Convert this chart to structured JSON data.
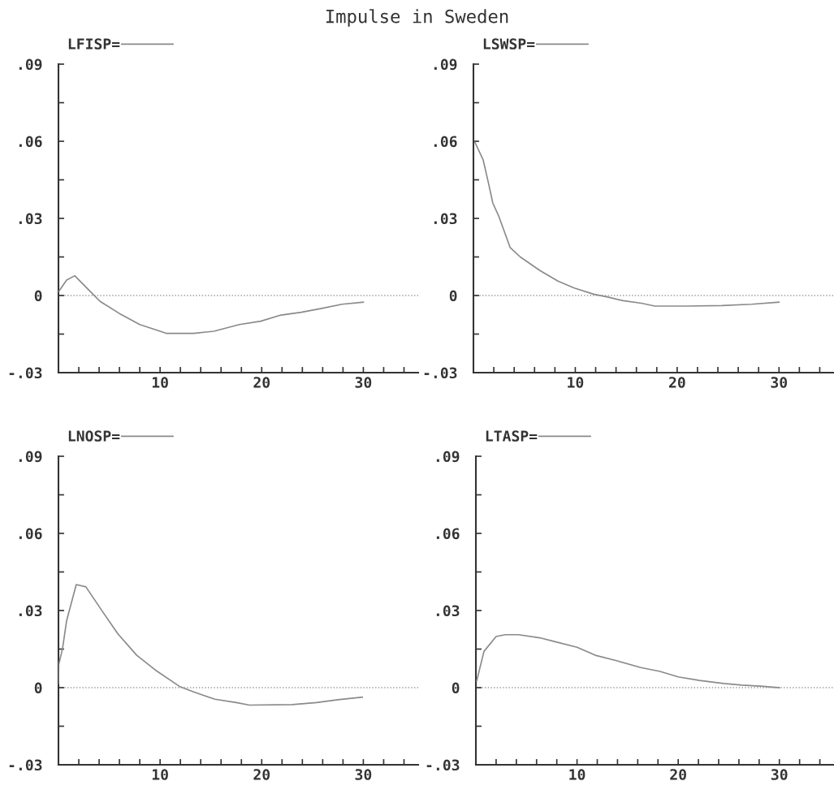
{
  "chart_data": [
    {
      "type": "line",
      "title": "Impulse in Sweden",
      "legend": "top left",
      "xlim": [
        0,
        35.4
      ],
      "ylim": [
        -0.03,
        0.09
      ],
      "xticks": [
        {
          "value": 2,
          "label": null
        },
        {
          "value": 4,
          "label": null
        },
        {
          "value": 6,
          "label": null
        },
        {
          "value": 8,
          "label": null
        },
        10,
        {
          "value": 12,
          "label": null
        },
        {
          "value": 14,
          "label": null
        },
        {
          "value": 16,
          "label": null
        },
        {
          "value": 18,
          "label": null
        },
        20,
        {
          "value": 22,
          "label": null
        },
        {
          "value": 24,
          "label": null
        },
        {
          "value": 26,
          "label": null
        },
        {
          "value": 28,
          "label": null
        },
        30,
        {
          "value": 32,
          "label": null
        },
        {
          "value": 34,
          "label": null
        }
      ],
      "yticks": [
        {
          "value": -0.03,
          "label": "-.03"
        },
        {
          "value": -0.015,
          "label": null
        },
        0,
        {
          "value": 0.015,
          "label": null
        },
        {
          "value": 0.03,
          "label": ".03"
        },
        {
          "value": 0.045,
          "label": null
        },
        {
          "value": 0.06,
          "label": ".06"
        },
        {
          "value": 0.075,
          "label": null
        },
        {
          "value": 0.09,
          "label": ".09"
        }
      ],
      "ref_lines": [
        {
          "axis": "y",
          "value": 0,
          "color": "#999999",
          "line_style": "dotted"
        }
      ],
      "series": [
        {
          "name": "LFISP=",
          "color": "#8a8a8a",
          "x": [
            0,
            0.8,
            1.6,
            3.45,
            4.1,
            6,
            8,
            10,
            10.6,
            13.3,
            15.3,
            17.8,
            19.9,
            21.9,
            23.9,
            25.9,
            27.9,
            30
          ],
          "values": [
            0.0014,
            0.006,
            0.0077,
            0.0003,
            -0.0023,
            -0.007,
            -0.0113,
            -0.0139,
            -0.0147,
            -0.0147,
            -0.0139,
            -0.0113,
            -0.01,
            -0.0076,
            -0.0065,
            -0.005,
            -0.0034,
            -0.0026
          ]
        }
      ]
    },
    {
      "type": "line",
      "legend": "top left",
      "xlim": [
        0,
        35.4
      ],
      "ylim": [
        -0.03,
        0.09
      ],
      "xticks": [
        {
          "value": 2,
          "label": null
        },
        {
          "value": 4,
          "label": null
        },
        {
          "value": 6,
          "label": null
        },
        {
          "value": 8,
          "label": null
        },
        10,
        {
          "value": 12,
          "label": null
        },
        {
          "value": 14,
          "label": null
        },
        {
          "value": 16,
          "label": null
        },
        {
          "value": 18,
          "label": null
        },
        20,
        {
          "value": 22,
          "label": null
        },
        {
          "value": 24,
          "label": null
        },
        {
          "value": 26,
          "label": null
        },
        {
          "value": 28,
          "label": null
        },
        30,
        {
          "value": 32,
          "label": null
        },
        {
          "value": 34,
          "label": null
        }
      ],
      "yticks": [
        {
          "value": -0.03,
          "label": "-.03"
        },
        {
          "value": -0.015,
          "label": null
        },
        0,
        {
          "value": 0.015,
          "label": null
        },
        {
          "value": 0.03,
          "label": ".03"
        },
        {
          "value": 0.045,
          "label": null
        },
        {
          "value": 0.06,
          "label": ".06"
        },
        {
          "value": 0.075,
          "label": null
        },
        {
          "value": 0.09,
          "label": ".09"
        }
      ],
      "ref_lines": [
        {
          "axis": "y",
          "value": 0,
          "color": "#999999",
          "line_style": "dotted"
        }
      ],
      "series": [
        {
          "name": "LSWSP=",
          "color": "#8a8a8a",
          "x": [
            0.15,
            0.95,
            1.5,
            1.9,
            2.5,
            3.6,
            4.6,
            6.5,
            8.3,
            9.9,
            11.8,
            13.1,
            14.7,
            16.5,
            17.8,
            21,
            24.4,
            27.3,
            30
          ],
          "values": [
            0.0596,
            0.0528,
            0.0433,
            0.036,
            0.0307,
            0.0187,
            0.015,
            0.0098,
            0.0056,
            0.0029,
            0.0005,
            -0.0005,
            -0.002,
            -0.003,
            -0.0041,
            -0.0041,
            -0.0039,
            -0.0034,
            -0.0026
          ]
        }
      ]
    },
    {
      "type": "line",
      "legend": "top left",
      "xlim": [
        0,
        35.4
      ],
      "ylim": [
        -0.03,
        0.09
      ],
      "xticks": [
        {
          "value": 2,
          "label": null
        },
        {
          "value": 4,
          "label": null
        },
        {
          "value": 6,
          "label": null
        },
        {
          "value": 8,
          "label": null
        },
        10,
        {
          "value": 12,
          "label": null
        },
        {
          "value": 14,
          "label": null
        },
        {
          "value": 16,
          "label": null
        },
        {
          "value": 18,
          "label": null
        },
        20,
        {
          "value": 22,
          "label": null
        },
        {
          "value": 24,
          "label": null
        },
        {
          "value": 26,
          "label": null
        },
        {
          "value": 28,
          "label": null
        },
        30,
        {
          "value": 32,
          "label": null
        },
        {
          "value": 34,
          "label": null
        }
      ],
      "yticks": [
        {
          "value": -0.03,
          "label": "-.03"
        },
        {
          "value": -0.015,
          "label": null
        },
        0,
        {
          "value": 0.015,
          "label": null
        },
        {
          "value": 0.03,
          "label": ".03"
        },
        {
          "value": 0.045,
          "label": null
        },
        {
          "value": 0.06,
          "label": ".06"
        },
        {
          "value": 0.075,
          "label": null
        },
        {
          "value": 0.09,
          "label": ".09"
        }
      ],
      "ref_lines": [
        {
          "axis": "y",
          "value": 0,
          "color": "#999999",
          "line_style": "dotted"
        }
      ],
      "series": [
        {
          "name": "LNOSP=",
          "color": "#8a8a8a",
          "x": [
            0,
            0.03,
            0.4,
            0.8,
            1.75,
            2.7,
            4.3,
            5.85,
            7.7,
            9.55,
            11.9,
            13.25,
            15.4,
            17.5,
            18.8,
            23,
            25.4,
            27.5,
            29.9
          ],
          "values": [
            0.0016,
            0.009,
            0.0152,
            0.026,
            0.0401,
            0.0392,
            0.0298,
            0.0209,
            0.0126,
            0.0068,
            0.0005,
            -0.0016,
            -0.0045,
            -0.0058,
            -0.0068,
            -0.0066,
            -0.0058,
            -0.0047,
            -0.0037
          ]
        }
      ]
    },
    {
      "type": "line",
      "legend": "top left",
      "xlim": [
        0,
        35.4
      ],
      "ylim": [
        -0.03,
        0.09
      ],
      "xticks": [
        {
          "value": 2,
          "label": null
        },
        {
          "value": 4,
          "label": null
        },
        {
          "value": 6,
          "label": null
        },
        {
          "value": 8,
          "label": null
        },
        10,
        {
          "value": 12,
          "label": null
        },
        {
          "value": 14,
          "label": null
        },
        {
          "value": 16,
          "label": null
        },
        {
          "value": 18,
          "label": null
        },
        20,
        {
          "value": 22,
          "label": null
        },
        {
          "value": 24,
          "label": null
        },
        {
          "value": 26,
          "label": null
        },
        {
          "value": 28,
          "label": null
        },
        30,
        {
          "value": 32,
          "label": null
        },
        {
          "value": 34,
          "label": null
        }
      ],
      "yticks": [
        {
          "value": -0.03,
          "label": "-.03"
        },
        {
          "value": -0.015,
          "label": null
        },
        0,
        {
          "value": 0.015,
          "label": null
        },
        {
          "value": 0.03,
          "label": ".03"
        },
        {
          "value": 0.045,
          "label": null
        },
        {
          "value": 0.06,
          "label": ".06"
        },
        {
          "value": 0.075,
          "label": null
        },
        {
          "value": 0.09,
          "label": ".09"
        }
      ],
      "ref_lines": [
        {
          "axis": "y",
          "value": 0,
          "color": "#999999",
          "line_style": "dotted"
        }
      ],
      "series": [
        {
          "name": "LTASP=",
          "color": "#8a8a8a",
          "x": [
            0.08,
            0.8,
            2,
            2.9,
            4.2,
            6.3,
            7.9,
            10,
            11.8,
            13.9,
            16.3,
            18.2,
            20,
            22.1,
            24.5,
            26.3,
            28.4,
            30
          ],
          "values": [
            0.0026,
            0.0141,
            0.0199,
            0.0206,
            0.0206,
            0.0194,
            0.0178,
            0.0157,
            0.0126,
            0.0105,
            0.0078,
            0.0063,
            0.0042,
            0.0028,
            0.0016,
            0.001,
            0.0005,
            0
          ]
        }
      ]
    }
  ]
}
